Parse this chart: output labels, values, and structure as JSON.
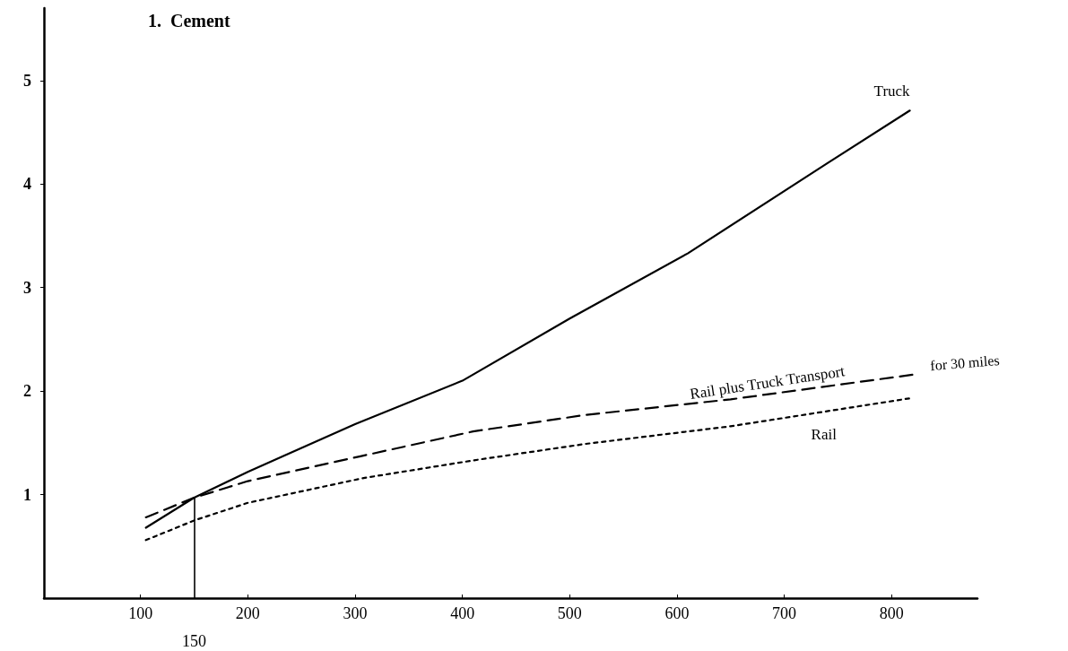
{
  "chart_data": {
    "type": "line",
    "title": "1.  Cement",
    "xlim": [
      10,
      880
    ],
    "xticks": [
      100,
      200,
      300,
      400,
      500,
      600,
      700,
      800
    ],
    "ylim": [
      0,
      5.7
    ],
    "yticks": [
      1,
      2,
      3,
      4,
      5
    ],
    "series": [
      {
        "name": "Truck",
        "color": "#000000",
        "line_style": "solid",
        "x": [
          105,
          150,
          200,
          300,
          400,
          500,
          610,
          740,
          817
        ],
        "values": [
          0.68,
          0.97,
          1.22,
          1.68,
          2.1,
          2.7,
          3.33,
          4.2,
          4.71
        ]
      },
      {
        "name": "Rail plus Truck Transport",
        "color": "#000000",
        "line_style": "dashed",
        "x": [
          105,
          150,
          200,
          305,
          410,
          515,
          650,
          821
        ],
        "values": [
          0.78,
          0.97,
          1.13,
          1.37,
          1.61,
          1.77,
          1.92,
          2.16
        ]
      },
      {
        "name": "Rail",
        "color": "#000000",
        "line_style": "dotted",
        "x": [
          105,
          150,
          200,
          308,
          410,
          515,
          650,
          817
        ],
        "values": [
          0.56,
          0.75,
          0.92,
          1.16,
          1.33,
          1.49,
          1.66,
          1.93
        ]
      }
    ],
    "annotations": [
      {
        "text": "for 30 miles",
        "x": 821,
        "y": 2.16
      }
    ],
    "ref_lines": [
      {
        "axis": "x",
        "value": 150,
        "label": "150"
      }
    ],
    "grid": false,
    "legend": false,
    "marker": "none"
  }
}
